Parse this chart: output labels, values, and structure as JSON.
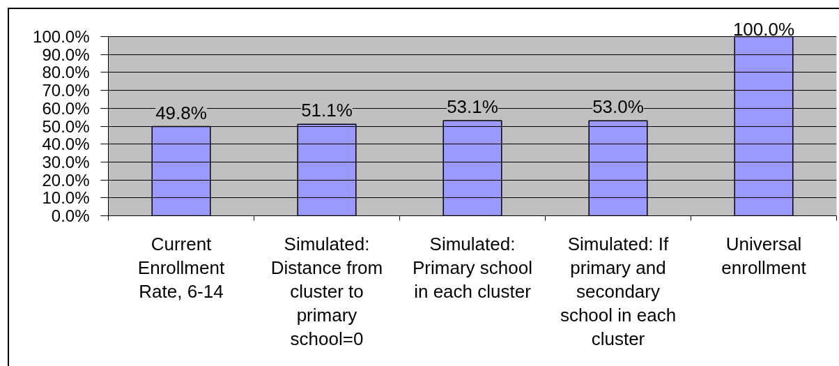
{
  "chart_data": {
    "type": "bar",
    "categories": [
      "Current Enrollment Rate, 6-14",
      "Simulated: Distance from cluster to primary school=0",
      "Simulated: Primary school in each cluster",
      "Simulated: If primary and secondary school in each cluster",
      "Universal enrollment"
    ],
    "values": [
      49.8,
      51.1,
      53.1,
      53.0,
      100.0
    ],
    "value_labels": [
      "49.8%",
      "51.1%",
      "53.1%",
      "53.0%",
      "100.0%"
    ],
    "color": "#9999ff",
    "ylim": [
      0,
      100
    ],
    "yticks": [
      {
        "value": 0,
        "label": "0.0%"
      },
      {
        "value": 10,
        "label": "10.0%"
      },
      {
        "value": 20,
        "label": "20.0%"
      },
      {
        "value": 30,
        "label": "30.0%"
      },
      {
        "value": 40,
        "label": "40.0%"
      },
      {
        "value": 50,
        "label": "50.0%"
      },
      {
        "value": 60,
        "label": "60.0%"
      },
      {
        "value": 70,
        "label": "70.0%"
      },
      {
        "value": 80,
        "label": "80.0%"
      },
      {
        "value": 90,
        "label": "90.0%"
      },
      {
        "value": 100,
        "label": "100.0%"
      }
    ],
    "grid": "y"
  }
}
